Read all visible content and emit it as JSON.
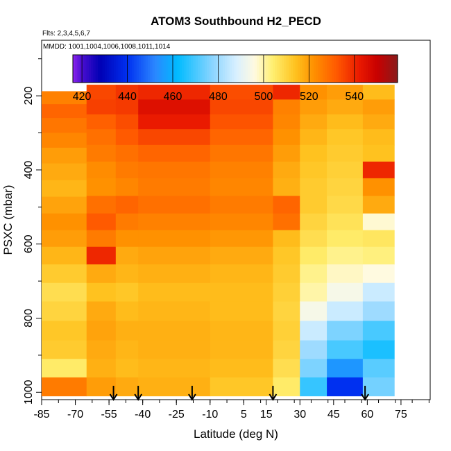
{
  "chart_data": {
    "type": "heatmap",
    "title": "ATOM3 Southbound H2_PECD",
    "flights_note": "Flts: 2,3,4,5,6,7",
    "dates_note": "MMDD: 1001,1004,1006,1008,1011,1014",
    "xlabel": "Latitude (deg N)",
    "ylabel": "PSXC (mbar)",
    "xlim": [
      -85,
      88
    ],
    "ylim": [
      1020,
      50
    ],
    "x_ticks": [
      -85,
      -70,
      -55,
      -40,
      -25,
      -10,
      5,
      15,
      30,
      45,
      60,
      75
    ],
    "x_tick_labels": [
      "-85",
      "-70",
      "-55",
      "-40",
      "-25",
      "-10",
      "5",
      "15",
      "30",
      "45",
      "60",
      "75"
    ],
    "y_ticks": [
      200,
      400,
      600,
      800,
      1000
    ],
    "y_tick_labels": [
      "200",
      "400",
      "600",
      "800",
      "1000"
    ],
    "colorbar": {
      "min": 416,
      "max": 559,
      "ticks": [
        420,
        440,
        460,
        480,
        500,
        520,
        540
      ],
      "tick_labels": [
        "420",
        "440",
        "460",
        "480",
        "500",
        "520",
        "540"
      ],
      "stops": [
        {
          "v": 416,
          "c": "#8b24ef"
        },
        {
          "v": 420,
          "c": "#4a0ed0"
        },
        {
          "v": 428,
          "c": "#0000b4"
        },
        {
          "v": 440,
          "c": "#0030f0"
        },
        {
          "v": 452,
          "c": "#2b86ff"
        },
        {
          "v": 462,
          "c": "#00bbff"
        },
        {
          "v": 478,
          "c": "#8fd6ff"
        },
        {
          "v": 488,
          "c": "#d9f0ff"
        },
        {
          "v": 496,
          "c": "#fffae0"
        },
        {
          "v": 504,
          "c": "#ffef70"
        },
        {
          "v": 514,
          "c": "#ffc21f"
        },
        {
          "v": 522,
          "c": "#ff9100"
        },
        {
          "v": 532,
          "c": "#ff5a00"
        },
        {
          "v": 542,
          "c": "#ea1a00"
        },
        {
          "v": 550,
          "c": "#c80000"
        },
        {
          "v": 559,
          "c": "#8a1b1b"
        }
      ]
    },
    "arrow_latitudes": [
      -53,
      -42,
      -18,
      18,
      59
    ],
    "profile_segments": [
      {
        "lat0": -85,
        "lat1": -65,
        "pressures": [
          205,
          240,
          280,
          320,
          360,
          405,
          450,
          495,
          540,
          585,
          630,
          680,
          730,
          780,
          835,
          885,
          935,
          985
        ],
        "values": [
          525,
          530,
          527,
          524,
          520,
          518,
          516,
          519,
          522,
          520,
          516,
          512,
          508,
          510,
          513,
          512,
          505,
          526
        ]
      },
      {
        "lat0": -65,
        "lat1": -52,
        "pressures": [
          190,
          230,
          270,
          310,
          355,
          400,
          445,
          495,
          540,
          585,
          630,
          680,
          730,
          780,
          835,
          885,
          935,
          985
        ],
        "values": [
          535,
          536,
          531,
          528,
          526,
          523,
          522,
          528,
          532,
          526,
          540,
          518,
          514,
          518,
          519,
          518,
          517,
          520
        ]
      },
      {
        "lat0": -52,
        "lat1": -42,
        "pressures": [
          190,
          230,
          270,
          310,
          355,
          400,
          445,
          495,
          540,
          585,
          630,
          680,
          730,
          780,
          835,
          885,
          935,
          985
        ],
        "values": [
          538,
          537,
          534,
          532,
          528,
          526,
          524,
          530,
          526,
          522,
          518,
          516,
          513,
          515,
          517,
          516,
          515,
          518
        ]
      },
      {
        "lat0": -42,
        "lat1": -10,
        "pressures": [
          190,
          230,
          270,
          310,
          355,
          400,
          445,
          495,
          540,
          585,
          630,
          680,
          730,
          780,
          835,
          885,
          935,
          985
        ],
        "values": [
          540,
          545,
          542,
          535,
          530,
          527,
          526,
          528,
          525,
          522,
          519,
          517,
          515,
          516,
          517,
          517,
          516,
          517
        ]
      },
      {
        "lat0": -10,
        "lat1": 18,
        "pressures": [
          190,
          230,
          270,
          310,
          355,
          400,
          445,
          495,
          540,
          585,
          630,
          680,
          730,
          780,
          835,
          885,
          935,
          985
        ],
        "values": [
          534,
          535,
          533,
          530,
          527,
          525,
          524,
          526,
          524,
          521,
          518,
          516,
          515,
          515,
          516,
          516,
          515,
          513
        ]
      },
      {
        "lat0": 18,
        "lat1": 30,
        "pressures": [
          190,
          230,
          270,
          310,
          355,
          400,
          445,
          495,
          540,
          585,
          630,
          680,
          730,
          780,
          835,
          885,
          935,
          985
        ],
        "values": [
          540,
          525,
          524,
          522,
          520,
          518,
          517,
          530,
          528,
          515,
          513,
          512,
          511,
          510,
          511,
          510,
          508,
          505
        ]
      },
      {
        "lat0": 30,
        "lat1": 42,
        "pressures": [
          190,
          230,
          270,
          310,
          355,
          400,
          445,
          495,
          540,
          585,
          630,
          680,
          730,
          780,
          835,
          885,
          935,
          985
        ],
        "values": [
          522,
          520,
          518,
          516,
          514,
          513,
          512,
          512,
          510,
          508,
          505,
          502,
          500,
          494,
          486,
          480,
          476,
          468
        ]
      },
      {
        "lat0": 42,
        "lat1": 58,
        "pressures": [
          190,
          230,
          270,
          310,
          355,
          400,
          445,
          495,
          540,
          585,
          630,
          680,
          730,
          780,
          835,
          885,
          935,
          985
        ],
        "values": [
          520,
          518,
          515,
          513,
          512,
          511,
          510,
          509,
          507,
          505,
          502,
          498,
          494,
          486,
          476,
          470,
          455,
          440
        ]
      },
      {
        "lat0": 58,
        "lat1": 72,
        "pressures": [
          190,
          230,
          270,
          310,
          355,
          400,
          445,
          495,
          540,
          585,
          630,
          680,
          730,
          780,
          835,
          885,
          935,
          985
        ],
        "values": [
          515,
          520,
          518,
          515,
          514,
          540,
          522,
          518,
          497,
          506,
          503,
          496,
          486,
          480,
          470,
          465,
          472,
          475
        ]
      }
    ]
  }
}
